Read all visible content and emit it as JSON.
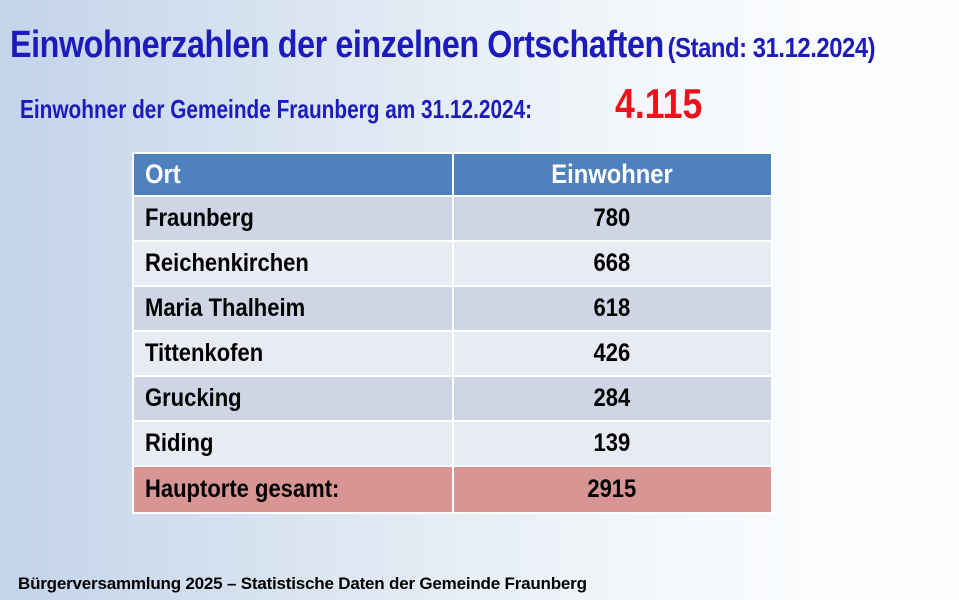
{
  "slide": {
    "title": "Einwohnerzahlen der einzelnen Ortschaften",
    "title_suffix": "(Stand: 31.12.2024)",
    "subtitle_label": "Einwohner der Gemeinde Fraunberg am 31.12.2024:",
    "subtitle_value": "4.115",
    "footer": "Bürgerversammlung 2025 – Statistische Daten der Gemeinde Fraunberg"
  },
  "table": {
    "columns": [
      "Ort",
      "Einwohner"
    ],
    "rows": [
      {
        "ort": "Fraunberg",
        "einwohner": "780"
      },
      {
        "ort": "Reichenkirchen",
        "einwohner": "668"
      },
      {
        "ort": "Maria Thalheim",
        "einwohner": "618"
      },
      {
        "ort": "Tittenkofen",
        "einwohner": "426"
      },
      {
        "ort": "Grucking",
        "einwohner": "284"
      },
      {
        "ort": "Riding",
        "einwohner": "139"
      }
    ],
    "total": {
      "ort": "Hauptorte gesamt:",
      "einwohner": "2915"
    }
  },
  "chart_data": {
    "type": "table",
    "title": "Einwohnerzahlen der einzelnen Ortschaften (Stand: 31.12.2024)",
    "columns": [
      "Ort",
      "Einwohner"
    ],
    "rows": [
      [
        "Fraunberg",
        780
      ],
      [
        "Reichenkirchen",
        668
      ],
      [
        "Maria Thalheim",
        618
      ],
      [
        "Tittenkofen",
        426
      ],
      [
        "Grucking",
        284
      ],
      [
        "Riding",
        139
      ],
      [
        "Hauptorte gesamt:",
        2915
      ]
    ],
    "municipality_total": "4.115"
  },
  "colors": {
    "title_blue": "#1b1bbe",
    "value_red": "#e8131b",
    "header_bg": "#4e81bd",
    "header_text": "#ffffff",
    "row_band_dark": "#cfd5e4",
    "row_band_light": "#e9ebf4",
    "total_row_bg": "#d79694",
    "background_left": "#c3d3e9",
    "background_right": "#fdfeff",
    "cell_border": "#ffffff"
  }
}
